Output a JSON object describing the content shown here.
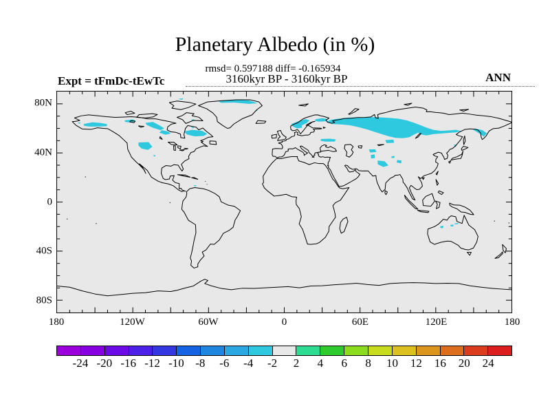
{
  "header": {
    "title": "Planetary Albedo (in %)",
    "stats_line": "rmsd= 0.597188 diff= -0.165934",
    "period_line": "3160kyr BP - 3160kyr BP",
    "experiment_label": "Expt = tFmDc-tEwTc",
    "season_label": "ANN"
  },
  "chart_data": {
    "type": "map-contour",
    "title": "Planetary Albedo (in %)",
    "subtitle": "3160kyr BP - 3160kyr BP",
    "rmsd": 0.597188,
    "diff": -0.165934,
    "projection": "equirectangular",
    "x_axis": {
      "range_deg": [
        -180,
        180
      ],
      "tick_labels": [
        "180",
        "120W",
        "60W",
        "0",
        "60E",
        "120E",
        "180"
      ],
      "label_positions_deg": [
        -180,
        -120,
        -60,
        0,
        60,
        120,
        180
      ],
      "minor_tick_step_deg": 10,
      "major_tick_step_deg": 30
    },
    "y_axis": {
      "range_deg": [
        -90,
        90
      ],
      "tick_labels": [
        "80N",
        "40N",
        "0",
        "40S",
        "80S"
      ],
      "label_positions_deg": [
        80,
        40,
        0,
        -40,
        -80
      ],
      "minor_tick_step_deg": 10,
      "major_tick_step_deg": 40
    },
    "colorbar": {
      "levels": [
        -24,
        -20,
        -16,
        -12,
        -10,
        -8,
        -6,
        -4,
        -2,
        2,
        4,
        6,
        8,
        10,
        12,
        16,
        20,
        24
      ],
      "colors": [
        "#9b00dc",
        "#8700e0",
        "#6b0ae6",
        "#4b21e8",
        "#3337e2",
        "#1563e2",
        "#1f86e0",
        "#29a8e2",
        "#2fc9df",
        "#e8e8e8",
        "#2edc91",
        "#2ecb2e",
        "#8cdc1e",
        "#c8dc1e",
        "#dcc01e",
        "#dc961e",
        "#dc6e1e",
        "#dc3c1e",
        "#dc1e1e"
      ]
    },
    "map_background": "#e8e8e8",
    "coastline_color": "#000000",
    "anomaly_fill_color": "#2fc9df",
    "anomaly_value_range": "-4 to -2",
    "anomaly_regions": [
      "Alaska",
      "Seward Peninsula",
      "Northwest Canada (Great Bear)",
      "Canadian Shield north band",
      "Canadian Shield south band",
      "Quebec-Labrador",
      "Ungava spot",
      "Northern Rockies / Montana",
      "Southwest US spot",
      "Northern Greenland coast",
      "East Greenland spot",
      "Arctic islands spot",
      "Baffin spot",
      "Caribbean spot",
      "Scandinavia",
      "Kola / Northwest Russia",
      "Siberia belt",
      "Altai",
      "Northern Kazakhstan",
      "Tian Shan",
      "Pamir",
      "Himalaya / West Tibet",
      "Central Tibet spot",
      "North Tibet spot",
      "Kamchatka / Okhotsk",
      "Sikhote-Alin spot",
      "Northwest Australia spot",
      "Central North Australia spot",
      "Gulf of Carpentaria spot"
    ]
  }
}
